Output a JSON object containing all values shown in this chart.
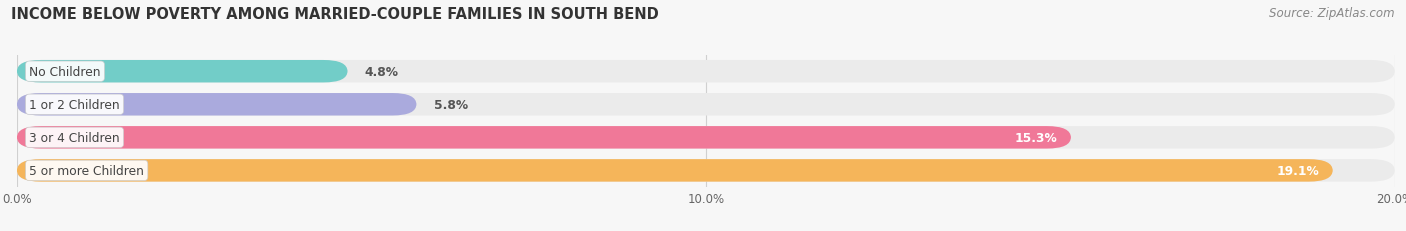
{
  "title": "INCOME BELOW POVERTY AMONG MARRIED-COUPLE FAMILIES IN SOUTH BEND",
  "source": "Source: ZipAtlas.com",
  "categories": [
    "No Children",
    "1 or 2 Children",
    "3 or 4 Children",
    "5 or more Children"
  ],
  "values": [
    4.8,
    5.8,
    15.3,
    19.1
  ],
  "bar_colors": [
    "#72cdc8",
    "#aaaadd",
    "#f07898",
    "#f5b55a"
  ],
  "bar_bg_color": "#ebebeb",
  "xlim": [
    0,
    20.0
  ],
  "xticks": [
    0.0,
    10.0,
    20.0
  ],
  "xticklabels": [
    "0.0%",
    "10.0%",
    "20.0%"
  ],
  "title_fontsize": 10.5,
  "source_fontsize": 8.5,
  "background_color": "#f7f7f7",
  "label_text_color": "#444444",
  "value_label_inside_color": "#ffffff",
  "value_label_outside_color": "#555555"
}
